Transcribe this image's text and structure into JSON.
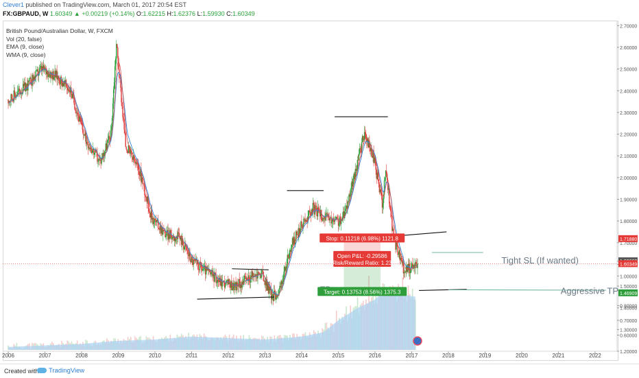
{
  "header": {
    "author": "Clever1",
    "published": " published on TradingView.com, March 01, 2017 20:54 EST",
    "symbol": "FX:GBPAUD, W",
    "last": "1.60349",
    "change": "+0.00219 (+0.14%)",
    "ohlc": [
      {
        "k": "O:",
        "v": "1.62215"
      },
      {
        "k": "H:",
        "v": "1.62376"
      },
      {
        "k": "L:",
        "v": "1.59930"
      },
      {
        "k": "C:",
        "v": "1.60349"
      }
    ]
  },
  "legend": [
    "British Pound/Australian Dollar, W, FXCM",
    "Vol (20, false)",
    "EMA (9, close)",
    "WMA (9, close)"
  ],
  "footer": {
    "created": "Created with",
    "brand": "TradingView"
  },
  "colors": {
    "up": "#2aa13a",
    "down": "#e03c3c",
    "ema": "#2f86d6",
    "wma": "#d4514f",
    "volume": "#a9d1f2",
    "stop": "#e53935",
    "target": "#2e9e3a"
  },
  "chart_data": {
    "type": "candlestick",
    "x_range": [
      2005.85,
      2022.6
    ],
    "ylim": [
      1.2,
      2.72
    ],
    "x_ticks": [
      "2006",
      "2007",
      "2008",
      "2009",
      "2010",
      "2011",
      "2012",
      "2013",
      "2014",
      "2015",
      "2016",
      "2017",
      "2018",
      "2019",
      "2020",
      "2021",
      "2022"
    ],
    "y_ticks": [
      "2.70000",
      "2.60000",
      "2.50000",
      "2.40000",
      "2.30000",
      "2.20000",
      "2.10000",
      "2.00000",
      "1.90000",
      "1.80000",
      "1.70000",
      "1.60000",
      "1.50000",
      "1.40000",
      "1.30000",
      "1.20000"
    ],
    "volume_ticks": [
      "1.10000",
      "1.00000",
      "0.90000",
      "0.80000",
      "0.70000",
      "0.60000"
    ],
    "price_anchors": [
      [
        2006.0,
        2.36
      ],
      [
        2006.5,
        2.42
      ],
      [
        2006.9,
        2.5
      ],
      [
        2007.3,
        2.47
      ],
      [
        2007.7,
        2.4
      ],
      [
        2008.1,
        2.18
      ],
      [
        2008.5,
        2.07
      ],
      [
        2008.8,
        2.2
      ],
      [
        2008.95,
        2.62
      ],
      [
        2009.2,
        2.15
      ],
      [
        2009.6,
        2.02
      ],
      [
        2009.9,
        1.82
      ],
      [
        2010.3,
        1.74
      ],
      [
        2010.7,
        1.72
      ],
      [
        2011.0,
        1.62
      ],
      [
        2011.4,
        1.57
      ],
      [
        2011.8,
        1.52
      ],
      [
        2012.2,
        1.5
      ],
      [
        2012.6,
        1.54
      ],
      [
        2012.9,
        1.56
      ],
      [
        2013.2,
        1.45
      ],
      [
        2013.4,
        1.48
      ],
      [
        2013.7,
        1.68
      ],
      [
        2014.0,
        1.78
      ],
      [
        2014.3,
        1.86
      ],
      [
        2014.6,
        1.82
      ],
      [
        2014.8,
        1.8
      ],
      [
        2015.1,
        1.8
      ],
      [
        2015.4,
        1.98
      ],
      [
        2015.7,
        2.2
      ],
      [
        2015.95,
        2.1
      ],
      [
        2016.2,
        1.88
      ],
      [
        2016.3,
        2.04
      ],
      [
        2016.5,
        1.72
      ],
      [
        2016.8,
        1.57
      ],
      [
        2017.16,
        1.60349
      ]
    ],
    "volume_anchors": [
      [
        2006.0,
        0.52
      ],
      [
        2007.0,
        0.53
      ],
      [
        2008.0,
        0.54
      ],
      [
        2008.9,
        0.56
      ],
      [
        2010.0,
        0.57
      ],
      [
        2011.0,
        0.59
      ],
      [
        2012.0,
        0.58
      ],
      [
        2013.0,
        0.57
      ],
      [
        2014.0,
        0.59
      ],
      [
        2014.6,
        0.62
      ],
      [
        2015.0,
        0.7
      ],
      [
        2015.5,
        0.78
      ],
      [
        2016.0,
        0.84
      ],
      [
        2016.3,
        0.92
      ],
      [
        2016.6,
        0.88
      ],
      [
        2017.1,
        0.86
      ]
    ],
    "price_labels": [
      {
        "text": "1.71880",
        "y": 1.7188,
        "color": "#e53935"
      },
      {
        "text": "1.60662",
        "y": 1.6166,
        "color": "#555555"
      },
      {
        "text": "1.60349",
        "y": 1.6035,
        "color": "#e53935"
      },
      {
        "text": "1.46909",
        "y": 1.4691,
        "color": "#2e9e3a"
      }
    ],
    "current_price": 1.60349,
    "trendlines": [
      {
        "x1": 2011.15,
        "y1": 1.44,
        "x2": 2013.25,
        "y2": 1.45
      },
      {
        "x1": 2012.1,
        "y1": 1.58,
        "x2": 2013.1,
        "y2": 1.575
      },
      {
        "x1": 2013.6,
        "y1": 1.94,
        "x2": 2014.6,
        "y2": 1.94
      },
      {
        "x1": 2014.9,
        "y1": 2.28,
        "x2": 2016.35,
        "y2": 2.28
      },
      {
        "x1": 2016.5,
        "y1": 1.73,
        "x2": 2017.95,
        "y2": 1.75
      },
      {
        "x1": 2017.2,
        "y1": 1.48,
        "x2": 2018.5,
        "y2": 1.485
      }
    ],
    "guide_lines": [
      {
        "x1": 2017.55,
        "y1": 1.655,
        "x2": 2018.95,
        "y2": 1.655
      },
      {
        "x1": 2018.0,
        "y1": 1.483,
        "x2": 2022.3,
        "y2": 1.481
      }
    ],
    "position": {
      "x1": 2015.15,
      "x2": 2016.15,
      "entry": 1.60662,
      "stop": 1.7188,
      "target": 1.46909
    },
    "annotations": [
      {
        "text": "Tight SL (If wanted)",
        "x": 2020.5,
        "y": 1.6175,
        "size": 13
      },
      {
        "text": "Aggressive TP",
        "x": 2021.85,
        "y": 1.476,
        "size": 13
      },
      {
        "text": "TP",
        "x": 2014.65,
        "y": 1.485,
        "size": 12
      }
    ],
    "boxes": {
      "stop": "Stop: 0.11218 (6.98%) 1121.8",
      "pnl": "Open P&L: -0.29586",
      "rr": "Risk/Reward Ratio: 1.23",
      "target": "Target: 0.13753 (8.56%) 1375.3"
    }
  }
}
